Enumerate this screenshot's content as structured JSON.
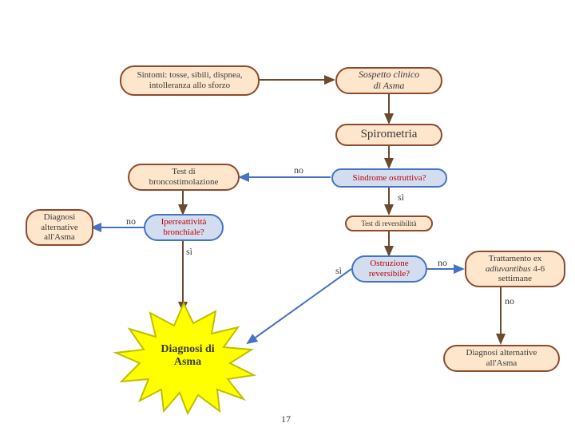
{
  "colors": {
    "peach_fill": "#fde6cc",
    "brown_border": "#8b4b2c",
    "lightblue_fill": "#d2deef",
    "blue_border": "#4472c4",
    "red_text": "#c00000",
    "yellow_fill": "#ffff00",
    "yellow_border": "#bfbf00",
    "text": "#3a3a3a",
    "arrow": "#6b4a2e",
    "blue_arrow": "#4472c4"
  },
  "nodes": {
    "sintomi": {
      "text": "Sintomi: tosse, sibili, dispnea,\nintolleranza allo sforzo",
      "fontsize": 11
    },
    "sospetto": {
      "text": "Sospetto clinico\ndi Asma",
      "fontsize": 12,
      "italic": true
    },
    "spirometria": {
      "text": "Spirometria",
      "fontsize": 15
    },
    "sindrome": {
      "text": "Sindrome ostruttiva?",
      "fontsize": 11
    },
    "test_bronco": {
      "text": "Test di\nbroncostimolazione",
      "fontsize": 11
    },
    "test_revers": {
      "text": "Test di reversibilità",
      "fontsize": 9
    },
    "iperreattivita": {
      "text": "Iperreattività\nbronchiale?",
      "fontsize": 11
    },
    "ostruzione": {
      "text": "Ostruzione\nreversibile?",
      "fontsize": 11
    },
    "diagnosi_alt_left": {
      "text": "Diagnosi\nalternative\nall'Asma",
      "fontsize": 11
    },
    "trattamento": {
      "text": "Trattamento ex\nadiuvantibus 4-6\nsettimane",
      "fontsize": 11
    },
    "diagnosi_alt_right": {
      "text": "Diagnosi alternative\nall'Asma",
      "fontsize": 11
    },
    "diagnosi_asma": {
      "text": "Diagnosi di\nAsma",
      "fontsize": 14
    }
  },
  "labels": {
    "no1": "no",
    "si1": "sì",
    "no2": "no",
    "si2": "sì",
    "si3": "sì",
    "no3": "no",
    "no4": "no"
  },
  "page_number": "17"
}
